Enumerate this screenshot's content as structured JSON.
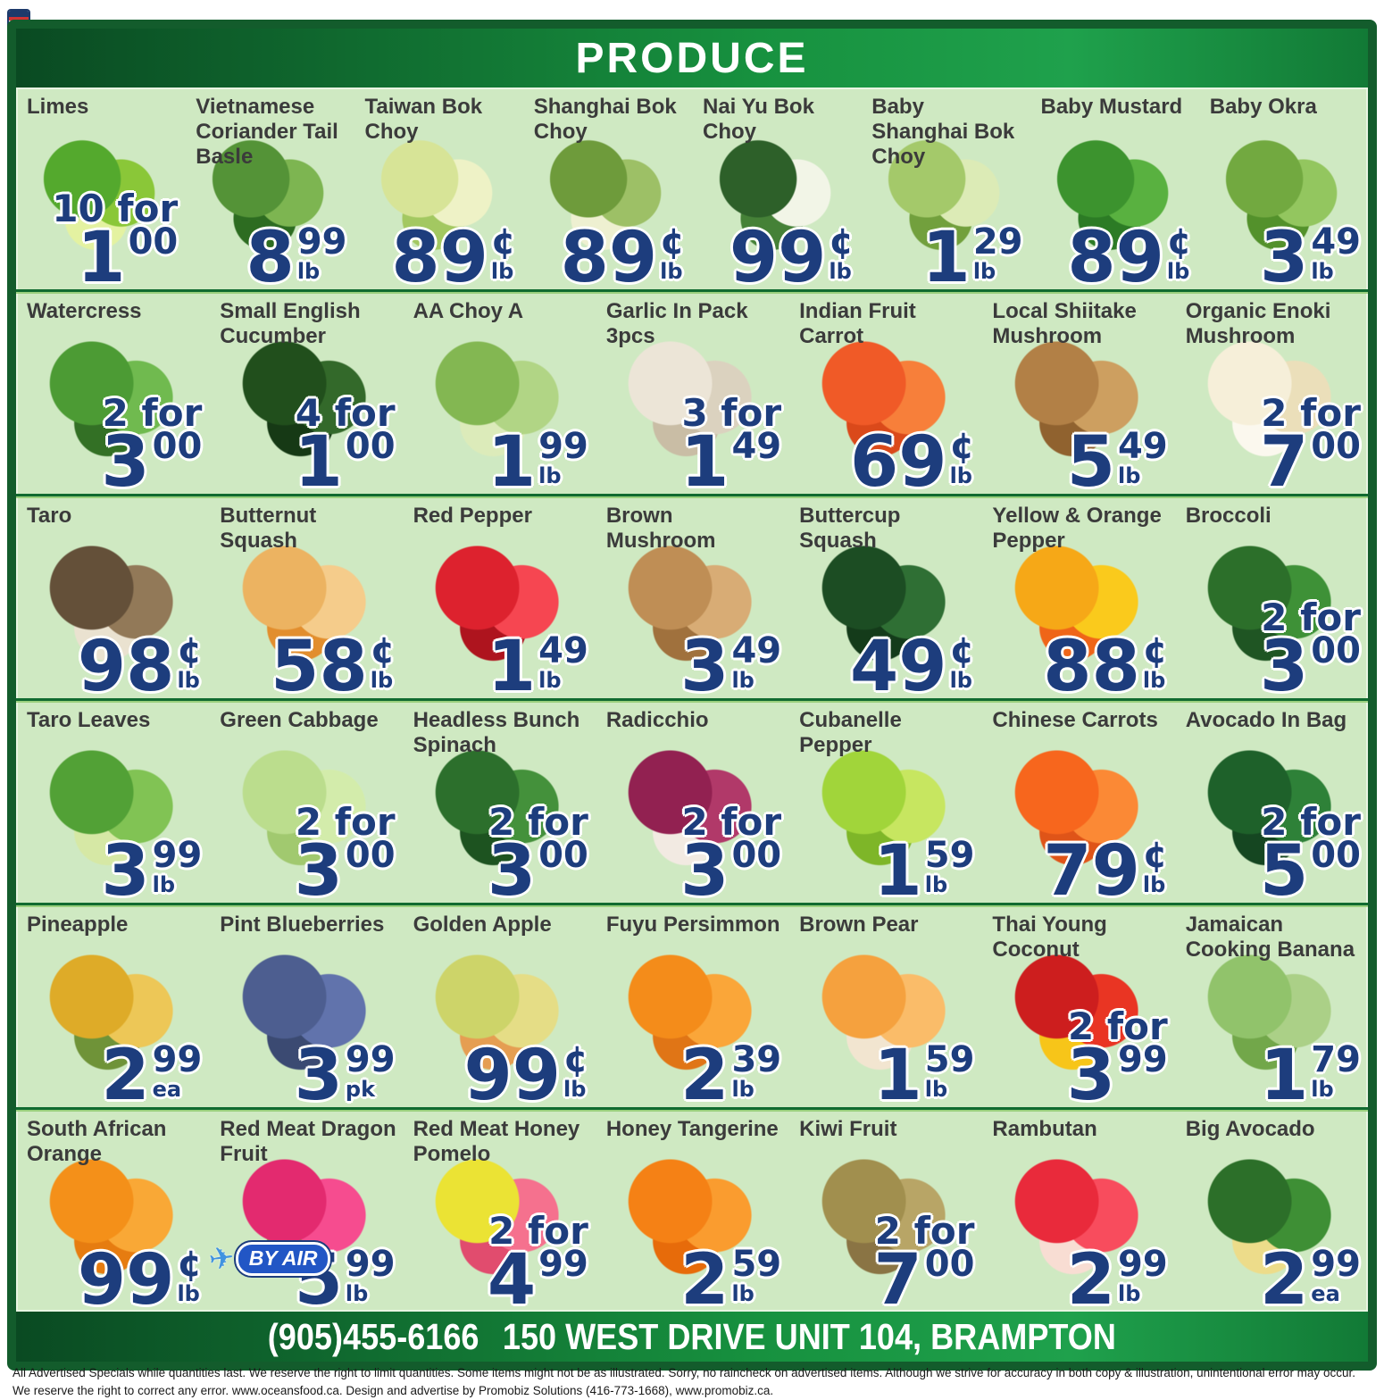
{
  "header": {
    "title": "PRODUCE"
  },
  "colors": {
    "frame": "#135c2c",
    "content_bg": "#cfe9c2",
    "price_navy": "#1d3d7d",
    "label": "#3b3b3b",
    "badge_blue": "#2256c5",
    "bar_gradient": [
      "#0a4a22",
      "#17913f",
      "#1fa14c",
      "#127a36"
    ]
  },
  "badge_icons": {
    "airplane": "✈"
  },
  "rows": [
    {
      "items": [
        {
          "label": "Limes",
          "price": {
            "prefix": "10 for",
            "main": "1",
            "sup": "00",
            "unit": null
          },
          "photo_colors": [
            "#57a832",
            "#8cc63e",
            "#e4f2a4"
          ]
        },
        {
          "label": "Vietnamese Coriander Tail Basle",
          "price": {
            "prefix": null,
            "main": "8",
            "sup": "99",
            "unit": "lb"
          },
          "photo_colors": [
            "#56923a",
            "#7fb455",
            "#2f6b24"
          ]
        },
        {
          "label": "Taiwan Bok Choy",
          "price": {
            "prefix": null,
            "main": "89",
            "sup": "¢",
            "unit": "lb"
          },
          "photo_colors": [
            "#d7e49a",
            "#eef2c8",
            "#a4c765"
          ]
        },
        {
          "label": "Shanghai Bok Choy",
          "price": {
            "prefix": null,
            "main": "89",
            "sup": "¢",
            "unit": "lb"
          },
          "photo_colors": [
            "#6f9a3f",
            "#9ebf6a",
            "#eef0d2"
          ]
        },
        {
          "label": "Nai Yu Bok Choy",
          "price": {
            "prefix": null,
            "main": "99",
            "sup": "¢",
            "unit": "lb"
          },
          "photo_colors": [
            "#2f5f2b",
            "#f2f5e8",
            "#47803a"
          ]
        },
        {
          "label": "Baby Shanghai Bok Choy",
          "price": {
            "prefix": null,
            "main": "1",
            "sup": "29",
            "unit": "lb"
          },
          "photo_colors": [
            "#a5c86e",
            "#dcebb8",
            "#739f41"
          ]
        },
        {
          "label": "Baby Mustard",
          "price": {
            "prefix": null,
            "main": "89",
            "sup": "¢",
            "unit": "lb"
          },
          "photo_colors": [
            "#3f9232",
            "#5cb044",
            "#2f7a28"
          ]
        },
        {
          "label": "Baby Okra",
          "price": {
            "prefix": null,
            "main": "3",
            "sup": "49",
            "unit": "lb"
          },
          "photo_colors": [
            "#74a844",
            "#95c563",
            "#55902f"
          ]
        }
      ]
    },
    {
      "items": [
        {
          "label": "Watercress",
          "price": {
            "prefix": "2 for",
            "main": "3",
            "sup": "00",
            "unit": null
          },
          "photo_colors": [
            "#4f9a38",
            "#72b953",
            "#356f28"
          ]
        },
        {
          "label": "Small English Cucumber",
          "price": {
            "prefix": "4 for",
            "main": "1",
            "sup": "00",
            "unit": null
          },
          "photo_colors": [
            "#234e1e",
            "#35682c",
            "#173916"
          ]
        },
        {
          "label": "AA Choy A",
          "price": {
            "prefix": null,
            "main": "1",
            "sup": "99",
            "unit": "lb"
          },
          "photo_colors": [
            "#85b656",
            "#b2d488",
            "#dcebbc"
          ]
        },
        {
          "label": "Garlic In Pack 3pcs",
          "price": {
            "prefix": "3 for",
            "main": "1",
            "sup": "49",
            "unit": null
          },
          "photo_colors": [
            "#ece5d8",
            "#dbd2c0",
            "#c8bda6"
          ]
        },
        {
          "label": "Indian Fruit Carrot",
          "price": {
            "prefix": null,
            "main": "69",
            "sup": "¢",
            "unit": "lb"
          },
          "photo_colors": [
            "#ea5b2b",
            "#f2803e",
            "#d44a1e"
          ]
        },
        {
          "label": "Local Shiitake Mushroom",
          "price": {
            "prefix": null,
            "main": "5",
            "sup": "49",
            "unit": "lb"
          },
          "photo_colors": [
            "#b08049",
            "#cb9f63",
            "#8e6232"
          ]
        },
        {
          "label": "Organic Enoki Mushroom",
          "price": {
            "prefix": "2 for",
            "main": "7",
            "sup": "00",
            "unit": null
          },
          "photo_colors": [
            "#f6efda",
            "#eadfbc",
            "#fbf8ee"
          ]
        }
      ]
    },
    {
      "items": [
        {
          "label": "Taro",
          "price": {
            "prefix": null,
            "main": "98",
            "sup": "¢",
            "unit": "lb"
          },
          "photo_colors": [
            "#63503a",
            "#91795a",
            "#eae2d1"
          ]
        },
        {
          "label": "Butternut Squash",
          "price": {
            "prefix": null,
            "main": "58",
            "sup": "¢",
            "unit": "lb"
          },
          "photo_colors": [
            "#eab365",
            "#f3cc8e",
            "#df8f33"
          ]
        },
        {
          "label": "Red Pepper",
          "price": {
            "prefix": null,
            "main": "1",
            "sup": "49",
            "unit": "lb"
          },
          "photo_colors": [
            "#d6242f",
            "#ef4852",
            "#a8161f"
          ]
        },
        {
          "label": "Brown Mushroom",
          "price": {
            "prefix": null,
            "main": "3",
            "sup": "49",
            "unit": "lb"
          },
          "photo_colors": [
            "#bd8e58",
            "#d6ac78",
            "#9e7140"
          ]
        },
        {
          "label": "Buttercup Squash",
          "price": {
            "prefix": null,
            "main": "49",
            "sup": "¢",
            "unit": "lb"
          },
          "photo_colors": [
            "#1e4c24",
            "#316e36",
            "#153a1b"
          ]
        },
        {
          "label": "Yellow & Orange Pepper",
          "price": {
            "prefix": null,
            "main": "88",
            "sup": "¢",
            "unit": "lb"
          },
          "photo_colors": [
            "#f3a81e",
            "#f8ca24",
            "#ea661d"
          ]
        },
        {
          "label": "Broccoli",
          "price": {
            "prefix": "2 for",
            "main": "3",
            "sup": "00",
            "unit": null
          },
          "photo_colors": [
            "#2e6e2c",
            "#41903a",
            "#215425"
          ]
        }
      ]
    },
    {
      "items": [
        {
          "label": "Taro Leaves",
          "price": {
            "prefix": null,
            "main": "3",
            "sup": "99",
            "unit": "lb"
          },
          "photo_colors": [
            "#55a03a",
            "#83c258",
            "#d6e8a8"
          ]
        },
        {
          "label": "Green Cabbage",
          "price": {
            "prefix": "2 for",
            "main": "3",
            "sup": "00",
            "unit": null
          },
          "photo_colors": [
            "#bcdc90",
            "#d4ecae",
            "#a2c873"
          ]
        },
        {
          "label": "Headless Bunch Spinach",
          "price": {
            "prefix": "2 for",
            "main": "3",
            "sup": "00",
            "unit": null
          },
          "photo_colors": [
            "#2e6e2e",
            "#47903e",
            "#1f5222"
          ]
        },
        {
          "label": "Radicchio",
          "price": {
            "prefix": "2 for",
            "main": "3",
            "sup": "00",
            "unit": null
          },
          "photo_colors": [
            "#8e2250",
            "#ad3a68",
            "#f2eae2"
          ]
        },
        {
          "label": "Cubanelle Pepper",
          "price": {
            "prefix": null,
            "main": "1",
            "sup": "59",
            "unit": "lb"
          },
          "photo_colors": [
            "#a2d440",
            "#c8e566",
            "#80b52e"
          ]
        },
        {
          "label": "Chinese Carrots",
          "price": {
            "prefix": null,
            "main": "79",
            "sup": "¢",
            "unit": "lb"
          },
          "photo_colors": [
            "#f16722",
            "#f68a3a",
            "#da551c"
          ]
        },
        {
          "label": "Avocado In Bag",
          "price": {
            "prefix": "2 for",
            "main": "5",
            "sup": "00",
            "unit": null
          },
          "photo_colors": [
            "#20602c",
            "#31803a",
            "#174522"
          ]
        }
      ]
    },
    {
      "items": [
        {
          "label": "Pineapple",
          "price": {
            "prefix": null,
            "main": "2",
            "sup": "99",
            "unit": "ea"
          },
          "photo_colors": [
            "#dcab2e",
            "#ebc75c",
            "#70923c"
          ]
        },
        {
          "label": "Pint Blueberries",
          "price": {
            "prefix": null,
            "main": "3",
            "sup": "99",
            "unit": "pk"
          },
          "photo_colors": [
            "#4e5e8e",
            "#6273a9",
            "#3c4a70"
          ]
        },
        {
          "label": "Golden Apple",
          "price": {
            "prefix": null,
            "main": "99",
            "sup": "¢",
            "unit": "lb"
          },
          "photo_colors": [
            "#cdd46e",
            "#e4dd8a",
            "#e29e56"
          ]
        },
        {
          "label": "Fuyu Persimmon",
          "price": {
            "prefix": null,
            "main": "2",
            "sup": "39",
            "unit": "lb"
          },
          "photo_colors": [
            "#f08d20",
            "#f6a63f",
            "#dc761b"
          ]
        },
        {
          "label": "Brown Pear",
          "price": {
            "prefix": null,
            "main": "1",
            "sup": "59",
            "unit": "lb"
          },
          "photo_colors": [
            "#f2a243",
            "#f7bc6d",
            "#f1e5d1"
          ]
        },
        {
          "label": "Thai Young Coconut",
          "price": {
            "prefix": "2 for",
            "main": "3",
            "sup": "99",
            "unit": null
          },
          "photo_colors": [
            "#c62020",
            "#e23726",
            "#f5c521"
          ]
        },
        {
          "label": "Jamaican Cooking Banana",
          "price": {
            "prefix": null,
            "main": "1",
            "sup": "79",
            "unit": "lb"
          },
          "photo_colors": [
            "#93c26e",
            "#accf8a",
            "#74a64e"
          ]
        }
      ]
    },
    {
      "items": [
        {
          "label": "South African Orange",
          "price": {
            "prefix": null,
            "main": "99",
            "sup": "¢",
            "unit": "lb"
          },
          "photo_colors": [
            "#f0911f",
            "#f6a83c",
            "#e27d16"
          ]
        },
        {
          "label": "Red Meat Dragon Fruit",
          "badge": {
            "icon": "airplane",
            "label": "BY AIR"
          },
          "price": {
            "prefix": null,
            "main": "5",
            "sup": "99",
            "unit": "lb"
          },
          "photo_colors": [
            "#dc2c6e",
            "#f04e8e",
            "#61a03c"
          ]
        },
        {
          "label": "Red Meat Honey Pomelo",
          "price": {
            "prefix": "2 for",
            "main": "4",
            "sup": "99",
            "unit": null
          },
          "photo_colors": [
            "#eae23c",
            "#f0728e",
            "#dc4e6e"
          ]
        },
        {
          "label": "Honey Tangerine",
          "price": {
            "prefix": null,
            "main": "2",
            "sup": "59",
            "unit": "lb"
          },
          "photo_colors": [
            "#f0821b",
            "#f69d35",
            "#e26c10"
          ]
        },
        {
          "label": "Kiwi Fruit",
          "price": {
            "prefix": "2 for",
            "main": "7",
            "sup": "00",
            "unit": null
          },
          "photo_colors": [
            "#a08f51",
            "#b7a569",
            "#897446"
          ]
        },
        {
          "label": "Rambutan",
          "price": {
            "prefix": null,
            "main": "2",
            "sup": "99",
            "unit": "lb"
          },
          "photo_colors": [
            "#e22c3c",
            "#f24e5e",
            "#f7ddd4"
          ]
        },
        {
          "label": "Big Avocado",
          "price": {
            "prefix": null,
            "main": "2",
            "sup": "99",
            "unit": "ea"
          },
          "photo_colors": [
            "#2e6e2b",
            "#418e38",
            "#ecdc8e"
          ]
        }
      ]
    }
  ],
  "footer": {
    "phone": "(905)455-6166",
    "address": "150 WEST DRIVE UNIT 104, BRAMPTON"
  },
  "disclaimer": {
    "line1": "All Advertised Specials while quantities last. We reserve the right to limit quantities.  Some items might not be as illustrated.  Sorry, no raincheck on advertised items. Although we strive for accuracy in both copy & illustration, unintentional error may occur.",
    "line2": "We reserve the right to correct any error.  www.oceansfood.ca. Design and advertise by Promobiz Solutions (416-773-1668), www.promobiz.ca."
  }
}
